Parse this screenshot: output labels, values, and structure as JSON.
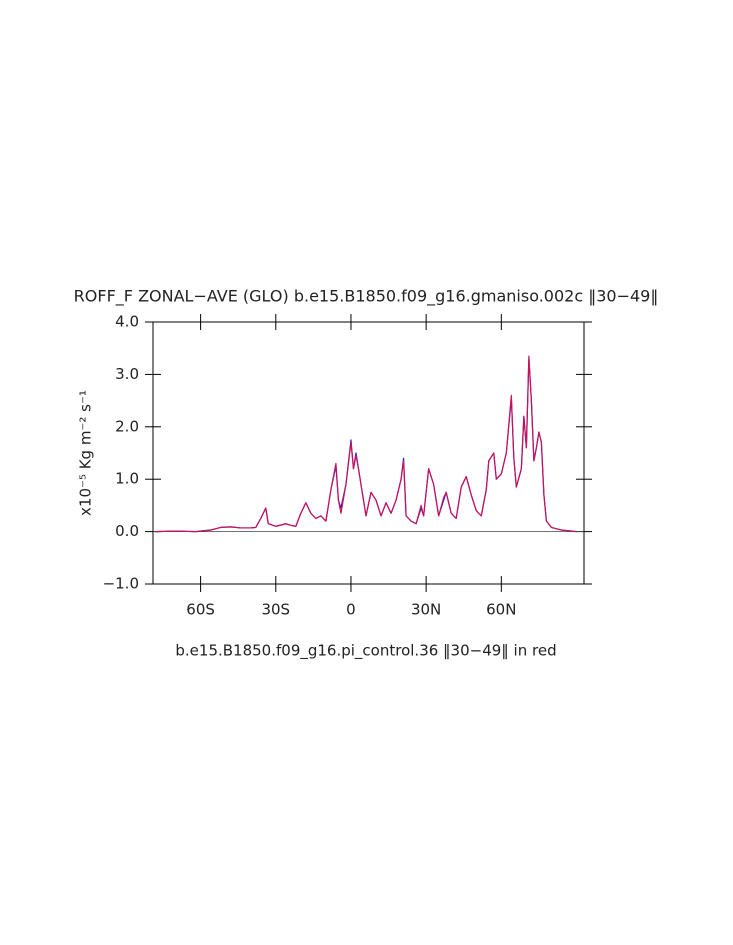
{
  "chart_data": {
    "type": "line",
    "title": "ROFF_F ZONAL−AVE (GLO) b.e15.B1850.f09_g16.gmaniso.002c ‖30−49‖",
    "y_label": "x10⁻⁵ Kg m⁻² s⁻¹",
    "x_label": "b.e15.B1850.f09_g16.pi_control.36 ‖30−49‖ in red",
    "xlim": [
      -79,
      93
    ],
    "xticks": [
      {
        "value": -60,
        "label": "60S"
      },
      {
        "value": -30,
        "label": "30S"
      },
      0,
      {
        "value": 30,
        "label": "30N"
      },
      {
        "value": 60,
        "label": "60N"
      }
    ],
    "ylim": [
      -1,
      4
    ],
    "yticks": [
      {
        "value": -1,
        "label": "−1.0"
      },
      {
        "value": 0,
        "label": "0.0"
      },
      {
        "value": 1,
        "label": "1.0"
      },
      {
        "value": 2,
        "label": "2.0"
      },
      {
        "value": 3,
        "label": "3.0"
      },
      {
        "value": 4,
        "label": "4.0"
      }
    ],
    "reference_line": 0,
    "x": [
      -78,
      -70,
      -62,
      -56,
      -52,
      -48,
      -44,
      -40,
      -38,
      -36,
      -34,
      -33,
      -30,
      -26,
      -24,
      -22,
      -20,
      -18,
      -16,
      -14,
      -12,
      -10,
      -8,
      -6,
      -5,
      -4,
      -2,
      0,
      1,
      2,
      3,
      4,
      6,
      8,
      10,
      12,
      14,
      16,
      18,
      20,
      21,
      22,
      24,
      26,
      28,
      29,
      31,
      33,
      35,
      37,
      38,
      40,
      42,
      44,
      46,
      48,
      50,
      52,
      54,
      55,
      57,
      58,
      60,
      62,
      64,
      65,
      66,
      68,
      69,
      70,
      71,
      72,
      73,
      74,
      75,
      76,
      77,
      78,
      80,
      84,
      88,
      90
    ],
    "series": [
      {
        "color": "#2222dd",
        "values": [
          0,
          0.01,
          0,
          0.03,
          0.08,
          0.09,
          0.07,
          0.07,
          0.08,
          0.25,
          0.45,
          0.15,
          0.1,
          0.15,
          0.12,
          0.1,
          0.35,
          0.55,
          0.35,
          0.25,
          0.3,
          0.2,
          0.8,
          1.25,
          0.6,
          0.45,
          0.9,
          1.75,
          1.2,
          1.5,
          1.2,
          0.9,
          0.3,
          0.75,
          0.6,
          0.3,
          0.55,
          0.35,
          0.6,
          1.0,
          1.4,
          0.3,
          0.2,
          0.15,
          0.45,
          0.3,
          1.2,
          0.9,
          0.3,
          0.6,
          0.75,
          0.35,
          0.25,
          0.85,
          1.05,
          0.7,
          0.4,
          0.3,
          0.8,
          1.35,
          1.5,
          1.0,
          1.1,
          1.5,
          2.55,
          1.4,
          0.85,
          1.2,
          2.2,
          1.6,
          3.3,
          2.5,
          1.35,
          1.6,
          1.9,
          1.7,
          0.7,
          0.2,
          0.08,
          0.03,
          0.01,
          0
        ]
      },
      {
        "color": "#cc1155",
        "values": [
          0,
          0.01,
          0,
          0.03,
          0.08,
          0.09,
          0.07,
          0.07,
          0.08,
          0.25,
          0.45,
          0.15,
          0.1,
          0.15,
          0.12,
          0.1,
          0.35,
          0.55,
          0.35,
          0.25,
          0.3,
          0.2,
          0.8,
          1.3,
          0.6,
          0.35,
          0.9,
          1.7,
          1.2,
          1.45,
          1.2,
          0.9,
          0.3,
          0.75,
          0.6,
          0.3,
          0.55,
          0.35,
          0.6,
          1.0,
          1.35,
          0.3,
          0.2,
          0.15,
          0.5,
          0.3,
          1.2,
          0.9,
          0.3,
          0.65,
          0.75,
          0.35,
          0.25,
          0.85,
          1.05,
          0.7,
          0.4,
          0.3,
          0.8,
          1.35,
          1.5,
          1.0,
          1.1,
          1.5,
          2.6,
          1.4,
          0.85,
          1.2,
          2.2,
          1.6,
          3.35,
          2.5,
          1.35,
          1.6,
          1.9,
          1.7,
          0.7,
          0.2,
          0.08,
          0.03,
          0.01,
          0
        ]
      }
    ]
  }
}
